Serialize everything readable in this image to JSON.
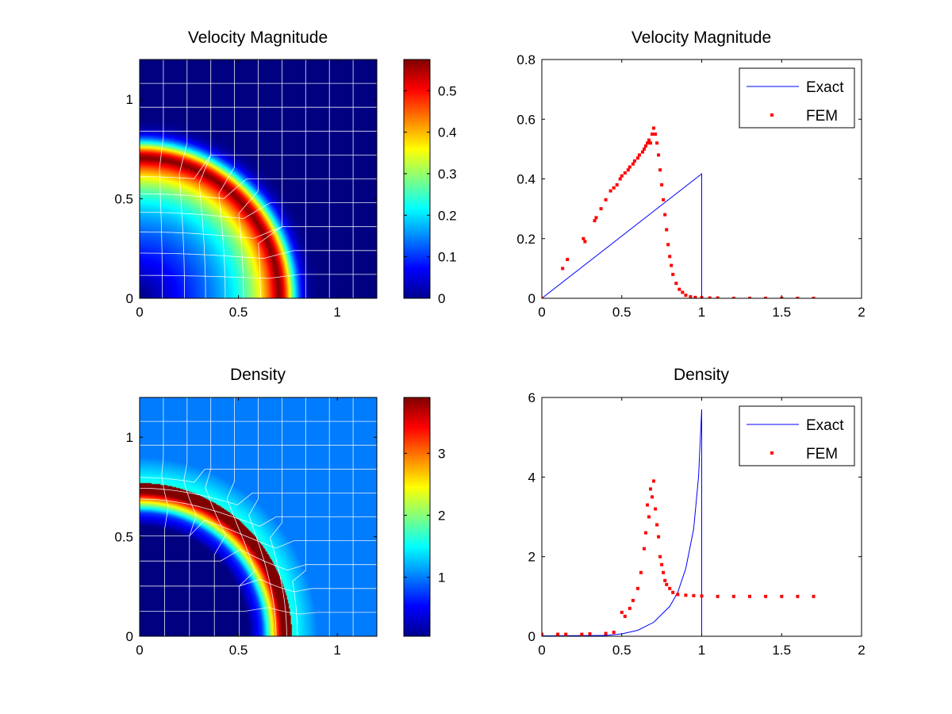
{
  "figure": {
    "background": "#ffffff"
  },
  "chart_data": [
    {
      "type": "heatmap",
      "title": "Velocity Magnitude",
      "xlim": [
        0,
        1.2
      ],
      "ylim": [
        0,
        1.2
      ],
      "xticks": [
        "0",
        "0.5",
        "1"
      ],
      "yticks": [
        "0",
        "0.5",
        "1"
      ],
      "colormap": "jet",
      "colorbar": {
        "range": [
          0,
          0.575
        ],
        "ticks": [
          "0",
          "0.1",
          "0.2",
          "0.3",
          "0.4",
          "0.5"
        ]
      },
      "field": {
        "shape": "ring",
        "peak_radius": 0.7,
        "peak_value": 0.57,
        "center_value": 0.0,
        "outer_radius": 0.85,
        "inner_slope": 0.38
      },
      "mesh_color": "#ffffff",
      "grid": false
    },
    {
      "type": "scatter",
      "title": "Velocity Magnitude",
      "xlim": [
        0,
        2
      ],
      "ylim": [
        0,
        0.8
      ],
      "xticks": [
        "0",
        "0.5",
        "1",
        "1.5",
        "2"
      ],
      "yticks": [
        "0",
        "0.2",
        "0.4",
        "0.6",
        "0.8"
      ],
      "legend_position": "top-right",
      "series": [
        {
          "name": "Exact",
          "kind": "line",
          "color": "#0000ff",
          "x": [
            0,
            1,
            1,
            1.7
          ],
          "y": [
            0,
            0.417,
            0,
            0
          ]
        },
        {
          "name": "FEM",
          "kind": "markers",
          "color": "#ff0000",
          "x": [
            0.0,
            0.13,
            0.16,
            0.26,
            0.27,
            0.33,
            0.34,
            0.37,
            0.4,
            0.43,
            0.45,
            0.47,
            0.49,
            0.5,
            0.52,
            0.54,
            0.55,
            0.57,
            0.58,
            0.6,
            0.61,
            0.63,
            0.64,
            0.65,
            0.66,
            0.67,
            0.68,
            0.69,
            0.7,
            0.71,
            0.72,
            0.73,
            0.74,
            0.75,
            0.76,
            0.77,
            0.78,
            0.79,
            0.8,
            0.81,
            0.82,
            0.84,
            0.86,
            0.88,
            0.9,
            0.93,
            0.96,
            1.0,
            1.05,
            1.1,
            1.2,
            1.3,
            1.4,
            1.5,
            1.6,
            1.7
          ],
          "y": [
            0.0,
            0.1,
            0.13,
            0.2,
            0.19,
            0.26,
            0.27,
            0.3,
            0.33,
            0.36,
            0.37,
            0.38,
            0.4,
            0.41,
            0.42,
            0.43,
            0.44,
            0.45,
            0.46,
            0.47,
            0.48,
            0.49,
            0.5,
            0.51,
            0.52,
            0.53,
            0.52,
            0.55,
            0.57,
            0.55,
            0.52,
            0.48,
            0.43,
            0.38,
            0.33,
            0.28,
            0.23,
            0.18,
            0.14,
            0.11,
            0.08,
            0.05,
            0.03,
            0.02,
            0.01,
            0.005,
            0.003,
            0.002,
            0.001,
            0.001,
            0.0,
            0.0,
            0.0,
            0.0,
            0.0,
            0.0
          ]
        }
      ]
    },
    {
      "type": "heatmap",
      "title": "Density",
      "xlim": [
        0,
        1.2
      ],
      "ylim": [
        0,
        1.2
      ],
      "xticks": [
        "0",
        "0.5",
        "1"
      ],
      "yticks": [
        "0",
        "0.5",
        "1"
      ],
      "colormap": "jet",
      "colorbar": {
        "range": [
          0.05,
          3.9
        ],
        "ticks": [
          "1",
          "2",
          "3"
        ]
      },
      "field": {
        "shape": "shock",
        "shock_radius": 0.75,
        "peak_value": 3.9,
        "center_value": 0.05,
        "ambient_value": 1.0
      },
      "mesh_color": "#ffffff",
      "grid": false
    },
    {
      "type": "scatter",
      "title": "Density",
      "xlim": [
        0,
        2
      ],
      "ylim": [
        0,
        6
      ],
      "xticks": [
        "0",
        "0.5",
        "1",
        "1.5",
        "2"
      ],
      "yticks": [
        "0",
        "2",
        "4",
        "6"
      ],
      "legend_position": "top-right",
      "series": [
        {
          "name": "Exact",
          "kind": "line",
          "color": "#0000ff",
          "x": [
            0,
            0.4,
            0.5,
            0.6,
            0.7,
            0.8,
            0.85,
            0.9,
            0.95,
            0.98,
            1.0,
            1.0,
            1.7
          ],
          "y": [
            0.01,
            0.02,
            0.06,
            0.15,
            0.35,
            0.75,
            1.1,
            1.7,
            2.7,
            4.0,
            5.7,
            0.0,
            0.0
          ]
        },
        {
          "name": "FEM",
          "kind": "markers",
          "color": "#ff0000",
          "x": [
            0.0,
            0.1,
            0.15,
            0.25,
            0.3,
            0.4,
            0.45,
            0.5,
            0.52,
            0.55,
            0.57,
            0.6,
            0.62,
            0.64,
            0.65,
            0.66,
            0.67,
            0.68,
            0.69,
            0.7,
            0.71,
            0.72,
            0.73,
            0.74,
            0.75,
            0.76,
            0.77,
            0.78,
            0.8,
            0.82,
            0.85,
            0.9,
            0.95,
            1.0,
            1.1,
            1.2,
            1.3,
            1.4,
            1.5,
            1.6,
            1.7
          ],
          "y": [
            0.05,
            0.05,
            0.05,
            0.05,
            0.06,
            0.07,
            0.1,
            0.6,
            0.5,
            0.7,
            0.9,
            1.2,
            1.6,
            2.2,
            2.6,
            3.3,
            3.0,
            3.7,
            3.5,
            3.9,
            3.2,
            2.8,
            2.5,
            2.0,
            1.8,
            1.6,
            1.4,
            1.3,
            1.2,
            1.1,
            1.05,
            1.03,
            1.02,
            1.01,
            1.0,
            1.0,
            1.0,
            1.0,
            1.0,
            1.0,
            1.0
          ]
        }
      ]
    }
  ]
}
